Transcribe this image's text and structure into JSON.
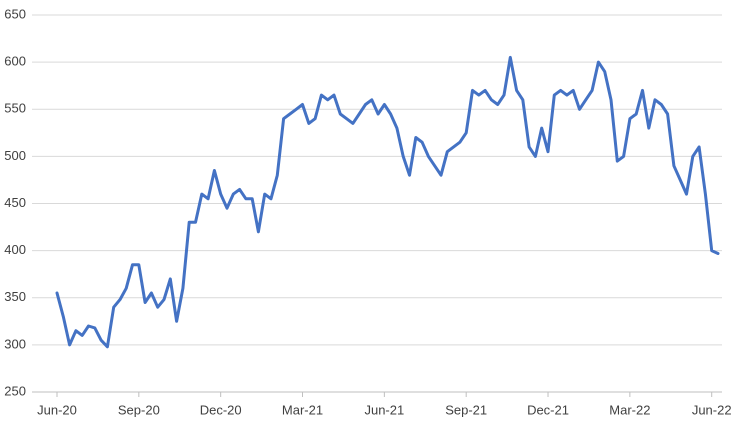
{
  "chart_data": {
    "type": "line",
    "categories": [
      "Jun-20",
      null,
      null,
      null,
      null,
      null,
      null,
      null,
      null,
      null,
      null,
      null,
      null,
      "Sep-20",
      null,
      null,
      null,
      null,
      null,
      null,
      null,
      null,
      null,
      null,
      null,
      null,
      "Dec-20",
      null,
      null,
      null,
      null,
      null,
      null,
      null,
      null,
      null,
      null,
      null,
      null,
      "Mar-21",
      null,
      null,
      null,
      null,
      null,
      null,
      null,
      null,
      null,
      null,
      null,
      null,
      "Jun-21",
      null,
      null,
      null,
      null,
      null,
      null,
      null,
      null,
      null,
      null,
      null,
      null,
      "Sep-21",
      null,
      null,
      null,
      null,
      null,
      null,
      null,
      null,
      null,
      null,
      null,
      null,
      "Dec-21",
      null,
      null,
      null,
      null,
      null,
      null,
      null,
      null,
      null,
      null,
      null,
      null,
      "Mar-22",
      null,
      null,
      null,
      null,
      null,
      null,
      null,
      null,
      null,
      null,
      null,
      null,
      "Jun-22",
      null
    ],
    "series": [
      {
        "color": "#4472c4",
        "values": [
          355,
          330,
          300,
          315,
          310,
          320,
          318,
          305,
          298,
          340,
          348,
          360,
          385,
          385,
          345,
          355,
          340,
          348,
          370,
          325,
          360,
          430,
          430,
          460,
          455,
          485,
          460,
          445,
          460,
          465,
          455,
          455,
          420,
          460,
          455,
          480,
          540,
          545,
          550,
          555,
          535,
          540,
          565,
          560,
          565,
          545,
          540,
          535,
          545,
          555,
          560,
          545,
          555,
          545,
          530,
          500,
          480,
          520,
          515,
          500,
          490,
          480,
          505,
          510,
          515,
          525,
          570,
          565,
          570,
          560,
          555,
          565,
          605,
          570,
          560,
          510,
          500,
          530,
          505,
          565,
          570,
          565,
          570,
          550,
          560,
          570,
          600,
          590,
          560,
          495,
          500,
          540,
          545,
          570,
          530,
          560,
          555,
          545,
          490,
          475,
          460,
          500,
          510,
          460,
          400,
          397
        ]
      }
    ],
    "ylim": [
      250,
      650
    ],
    "yticks": [
      250,
      300,
      350,
      400,
      450,
      500,
      550,
      600,
      650
    ],
    "grid": true
  }
}
